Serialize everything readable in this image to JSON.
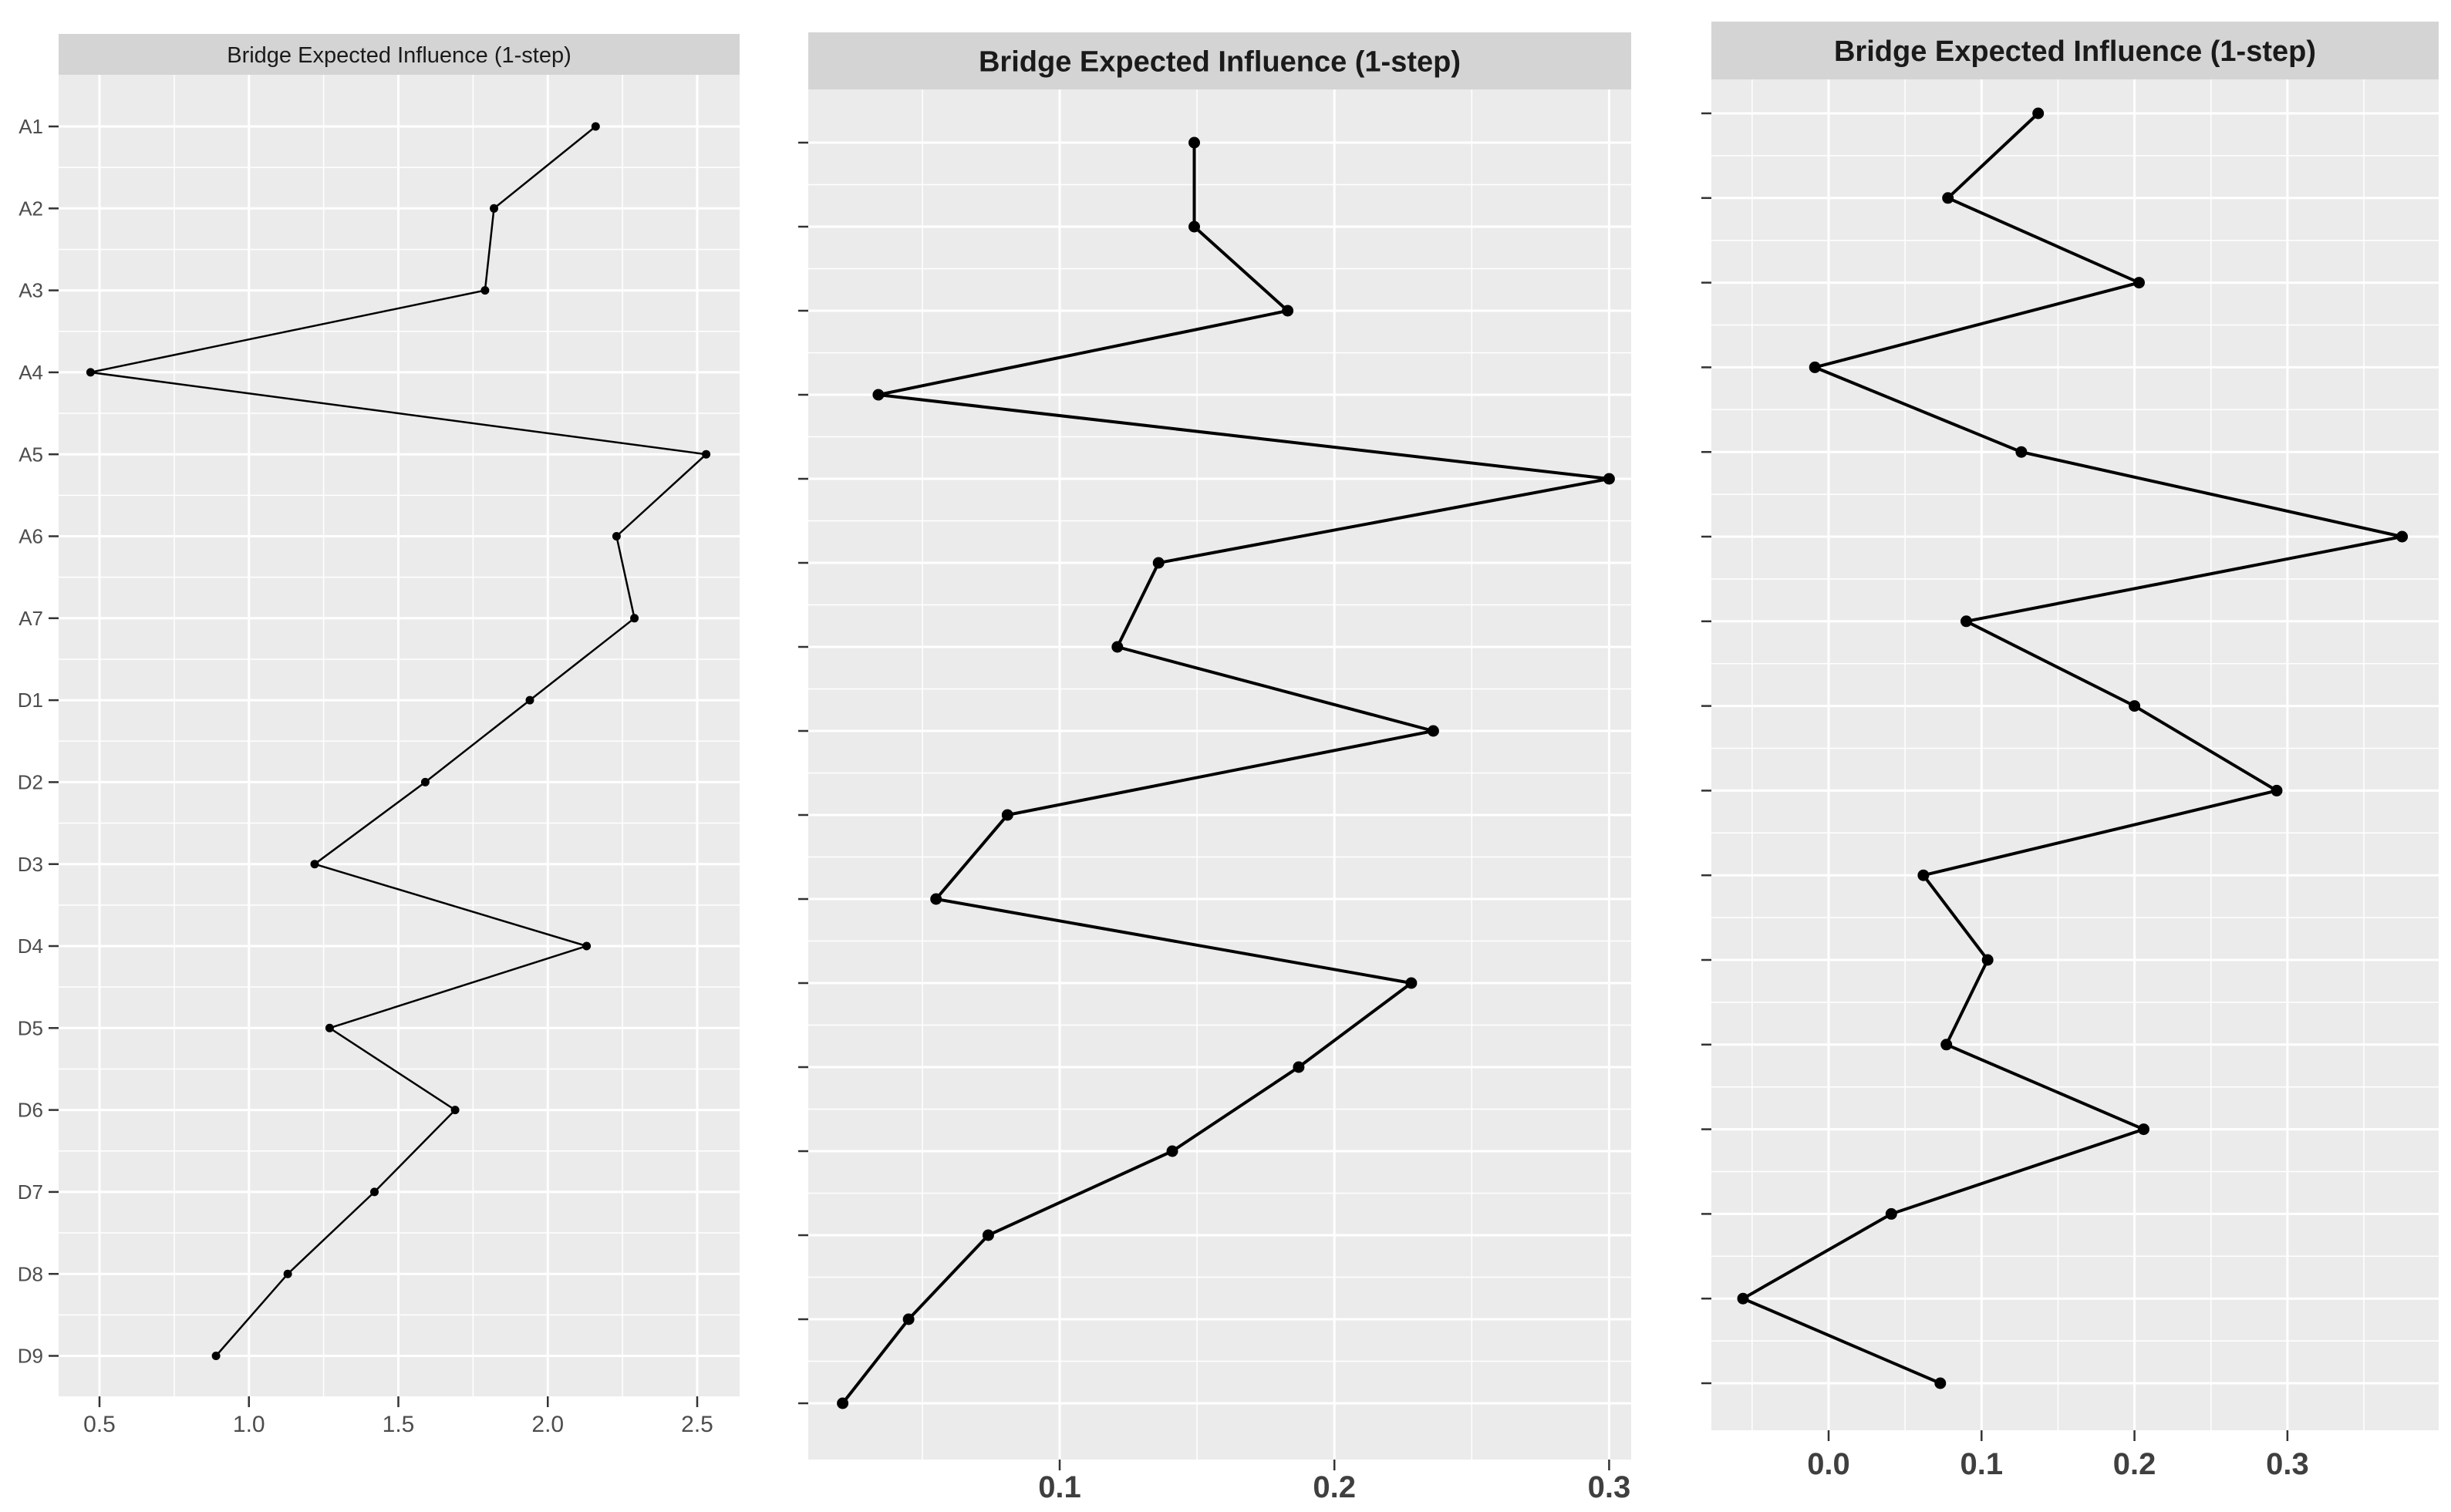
{
  "figure": {
    "background": "#ffffff",
    "n_panels": 3
  },
  "style": {
    "panel_bg": "#EBEBEB",
    "strip_bg": "#D4D4D4",
    "grid_color": "#FFFFFF",
    "series_color": "#000000",
    "point_color": "#000000",
    "tick_mark_color": "#333333",
    "axis_text_color_small": "#4D4D4D",
    "axis_text_color_large": "#3F3F3F",
    "title_text_color": "#1A1A1A"
  },
  "chart_data": [
    {
      "type": "line",
      "title": "Bridge Expected Influence (1-step)",
      "layout_hint": "horizontal dot-line plot, categories on y-axis top-to-bottom, white major/minor grid on gray panel, legend none",
      "categories": [
        "A1",
        "A2",
        "A3",
        "A4",
        "A5",
        "A6",
        "A7",
        "D1",
        "D2",
        "D3",
        "D4",
        "D5",
        "D6",
        "D7",
        "D8",
        "D9"
      ],
      "category_labels_visible": true,
      "values": [
        2.16,
        1.82,
        1.79,
        0.47,
        2.53,
        2.23,
        2.29,
        1.94,
        1.59,
        1.22,
        2.13,
        1.27,
        1.69,
        1.42,
        1.13,
        0.89
      ],
      "x_ticks": [
        0.5,
        1.0,
        1.5,
        2.0,
        2.5
      ],
      "x_tick_labels": [
        "0.5",
        "1.0",
        "1.5",
        "2.0",
        "2.5"
      ],
      "x_range": [
        0.363,
        2.639
      ],
      "grid": "major+minor"
    },
    {
      "type": "line",
      "title": "Bridge Expected Influence (1-step)",
      "layout_hint": "horizontal dot-line plot, 16 unlabeled category tick marks on y-axis, white major/minor grid on gray panel, legend none",
      "categories": null,
      "category_labels_visible": false,
      "values": [
        0.149,
        0.149,
        0.183,
        0.034,
        0.3,
        0.136,
        0.121,
        0.236,
        0.081,
        0.055,
        0.228,
        0.187,
        0.141,
        0.074,
        0.045,
        0.021
      ],
      "x_ticks": [
        0.1,
        0.2,
        0.3
      ],
      "x_tick_labels": [
        "0.1",
        "0.2",
        "0.3"
      ],
      "x_range": [
        0.007,
        0.308
      ],
      "grid": "major+minor"
    },
    {
      "type": "line",
      "title": "Bridge Expected Influence (1-step)",
      "layout_hint": "horizontal dot-line plot, 16 unlabeled category tick marks on y-axis, white major/minor grid on gray panel, legend none",
      "categories": null,
      "category_labels_visible": false,
      "values": [
        0.137,
        0.078,
        0.203,
        -0.009,
        0.126,
        0.375,
        0.09,
        0.2,
        0.293,
        0.062,
        0.104,
        0.077,
        0.206,
        0.041,
        -0.056,
        0.073
      ],
      "x_ticks": [
        0.0,
        0.1,
        0.2,
        0.3
      ],
      "x_tick_labels": [
        "0.0",
        "0.1",
        "0.2",
        "0.3"
      ],
      "x_range": [
        -0.077,
        0.399
      ],
      "grid": "major+minor"
    }
  ]
}
